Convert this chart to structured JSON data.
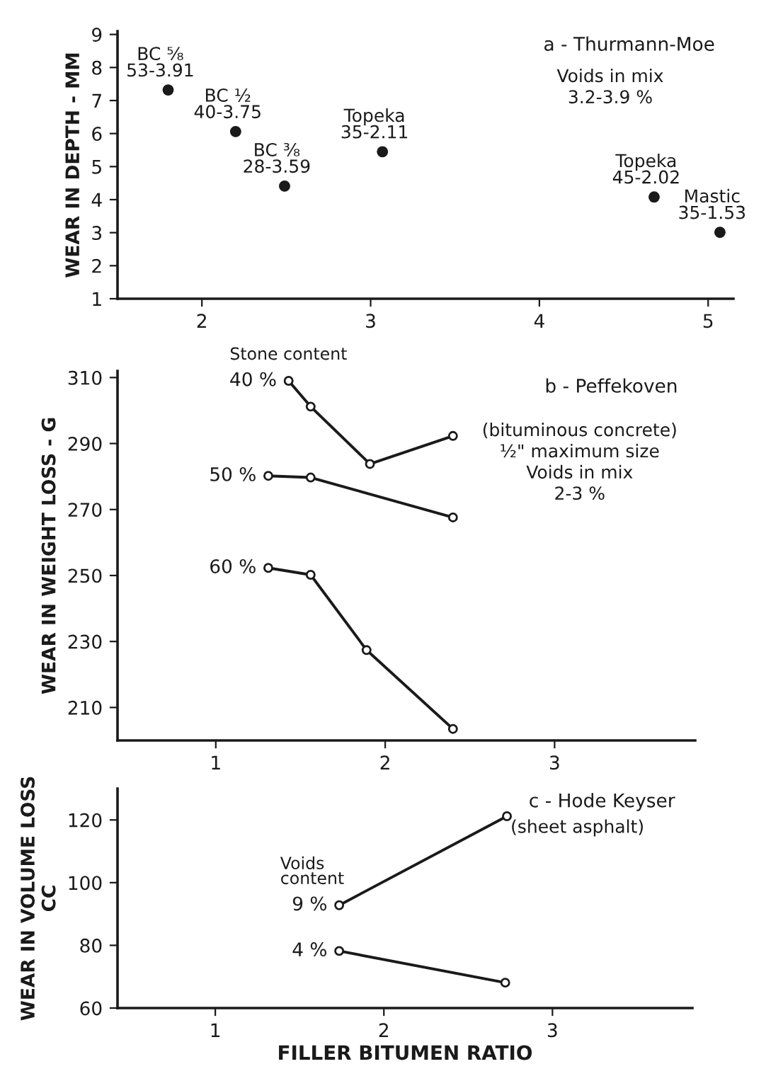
{
  "chart_data": [
    {
      "type": "scatter",
      "title": "a - Thurmann-Moe",
      "ylabel": "WEAR IN DEPTH - MM",
      "annotations": [
        "Voids in mix\n3.2-3.9 %",
        {
          "text": "BC ⅝\n53-3.91",
          "x": 1.8,
          "y": 7.32
        },
        {
          "text": "BC ½\n40-3.75",
          "x": 2.2,
          "y": 6.06
        },
        {
          "text": "BC ⅜\n28-3.59",
          "x": 2.49,
          "y": 4.41
        },
        {
          "text": "Topeka\n35-2.11",
          "x": 3.07,
          "y": 5.45
        },
        {
          "text": "Topeka\n45-2.02",
          "x": 4.68,
          "y": 4.08
        },
        {
          "text": "Mastic\n35-1.53",
          "x": 5.07,
          "y": 3.01
        }
      ],
      "x": [
        1.8,
        2.2,
        2.49,
        3.07,
        4.68,
        5.07
      ],
      "values": [
        7.32,
        6.06,
        4.41,
        5.45,
        4.08,
        3.01
      ],
      "color": "#1a1a1a",
      "marker": "circle",
      "xlim": [
        1.5,
        5.15
      ],
      "xticks": [
        2,
        3,
        4,
        5
      ],
      "ylim": [
        1,
        9.1
      ],
      "yticks": [
        1,
        2,
        3,
        4,
        5,
        6,
        7,
        8,
        9
      ],
      "grid": false
    },
    {
      "type": "line",
      "title": "b - Peffekoven",
      "ylabel": "WEAR IN WEIGHT LOSS - G",
      "legend_title": "Stone content",
      "annotations": [
        "(bituminous concrete)\n½\" maximum size\nVoids in mix\n2-3 %"
      ],
      "series": [
        {
          "name": "40 %",
          "color": "#1a1a1a",
          "x": [
            1.43,
            1.56,
            1.91,
            2.4
          ],
          "values": [
            309,
            301.2,
            283.8,
            292.3
          ]
        },
        {
          "name": "50 %",
          "color": "#1a1a1a",
          "x": [
            1.31,
            1.56,
            2.4
          ],
          "values": [
            280.2,
            279.7,
            267.6
          ]
        },
        {
          "name": "60 %",
          "color": "#1a1a1a",
          "x": [
            1.31,
            1.56,
            1.89,
            2.4
          ],
          "values": [
            252.3,
            250.2,
            227.4,
            203.5
          ]
        }
      ],
      "marker": "circle",
      "line_style": "solid",
      "xlim": [
        0.42,
        3.83
      ],
      "xticks": [
        1,
        2,
        3
      ],
      "ylim": [
        200,
        312
      ],
      "yticks": [
        210,
        230,
        250,
        270,
        290,
        310
      ],
      "grid": false
    },
    {
      "type": "line",
      "title": "c - Hode Keyser",
      "xlabel": "FILLER BITUMEN RATIO",
      "ylabel": "WEAR IN VOLUME LOSS\nCC",
      "legend_title": "Voids\ncontent",
      "annotations": [
        "(sheet asphalt)"
      ],
      "series": [
        {
          "name": "9 %",
          "color": "#1a1a1a",
          "x": [
            1.735,
            2.73
          ],
          "values": [
            92.8,
            121.2
          ]
        },
        {
          "name": "4 %",
          "color": "#1a1a1a",
          "x": [
            1.735,
            2.72
          ],
          "values": [
            78.2,
            68.1
          ]
        }
      ],
      "marker": "circle",
      "line_style": "solid",
      "xlim": [
        0.42,
        3.83
      ],
      "xticks": [
        1,
        2,
        3
      ],
      "ylim": [
        60,
        130
      ],
      "yticks": [
        60,
        80,
        100,
        120
      ],
      "grid": false
    }
  ]
}
